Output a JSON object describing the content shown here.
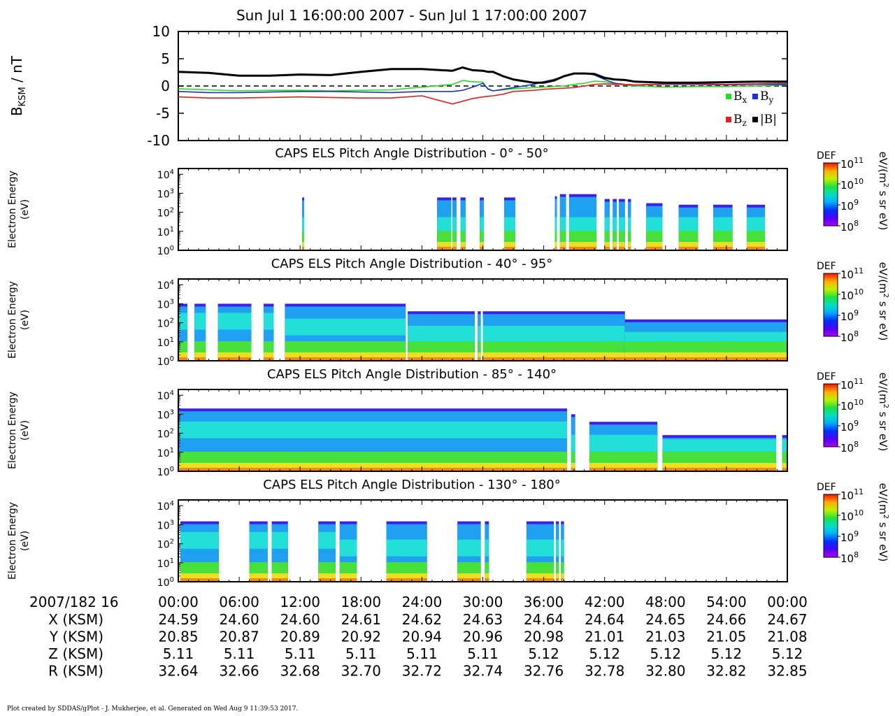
{
  "figure": {
    "title": "Sun Jul 1 16:00:00 2007 - Sun Jul 1 17:00:00 2007",
    "footer": "Plot created by SDDAS/gPlot - J. Mukherjee, et al.  Generated on Wed Aug 9 11:39:53 2017."
  },
  "colors": {
    "bx": "#22dd22",
    "by": "#1f2fd6",
    "bz": "#e21f1f",
    "b_total": "#000000"
  },
  "mag_panel": {
    "ylabel_main": "B",
    "ylabel_sub": "KSM",
    "ylabel_rest": " / nT",
    "legend": [
      {
        "key": "bx",
        "base": "B",
        "sub": "x"
      },
      {
        "key": "by",
        "base": "B",
        "sub": "y"
      },
      {
        "key": "bz",
        "base": "B",
        "sub": "z"
      },
      {
        "key": "b_total",
        "base": "|B|",
        "sub": ""
      }
    ]
  },
  "spec_common": {
    "ylabel_1": "Electron Energy",
    "ylabel_2": "(eV)",
    "cbar_title": "DEF",
    "cbar_unit_a": "eV/(m",
    "cbar_unit_sup": "2",
    "cbar_unit_b": " s sr eV)",
    "cbar_ticks": [
      {
        "base": "10",
        "exp": "11"
      },
      {
        "base": "10",
        "exp": "10"
      },
      {
        "base": "10",
        "exp": "9"
      },
      {
        "base": "10",
        "exp": "8"
      }
    ],
    "y_ticks": [
      {
        "base": "10",
        "exp": "4"
      },
      {
        "base": "10",
        "exp": "3"
      },
      {
        "base": "10",
        "exp": "2"
      },
      {
        "base": "10",
        "exp": "1"
      },
      {
        "base": "10",
        "exp": "0"
      }
    ]
  },
  "ephemeris": {
    "date_label": "2007/182 16",
    "rows": [
      {
        "label": "X (KSM)",
        "values": [
          "24.59",
          "24.60",
          "24.60",
          "24.61",
          "24.62",
          "24.63",
          "24.64",
          "24.64",
          "24.65",
          "24.66",
          "24.67"
        ]
      },
      {
        "label": "Y (KSM)",
        "values": [
          "20.85",
          "20.87",
          "20.89",
          "20.92",
          "20.94",
          "20.96",
          "20.98",
          "21.01",
          "21.03",
          "21.05",
          "21.08"
        ]
      },
      {
        "label": "Z (KSM)",
        "values": [
          "5.11",
          "5.11",
          "5.11",
          "5.11",
          "5.11",
          "5.11",
          "5.12",
          "5.12",
          "5.12",
          "5.12",
          "5.12"
        ]
      },
      {
        "label": "R (KSM)",
        "values": [
          "32.64",
          "32.66",
          "32.68",
          "32.70",
          "32.72",
          "32.74",
          "32.76",
          "32.78",
          "32.80",
          "32.82",
          "32.85"
        ]
      }
    ]
  },
  "chart_data": [
    {
      "type": "line",
      "title": "",
      "ylabel": "BKSM / nT",
      "xlim": [
        "16:00:00",
        "17:00:00"
      ],
      "ylim": [
        -10,
        10
      ],
      "yticks": [
        10,
        5,
        0,
        -5,
        -10
      ],
      "zero_line": "dashed",
      "legend_placement": "bottom-right",
      "x": [
        0,
        3,
        6,
        9,
        12,
        15,
        18,
        21,
        24,
        27,
        28,
        29,
        30,
        30.5,
        31,
        32,
        33,
        35,
        36,
        37,
        38,
        39,
        40,
        41,
        42,
        43,
        44,
        45,
        48,
        51,
        54,
        57,
        60
      ],
      "series": [
        {
          "name": "Bx",
          "key": "bx",
          "values": [
            -0.5,
            -0.7,
            -0.9,
            -0.8,
            -0.8,
            -0.9,
            -0.8,
            -0.7,
            -0.2,
            0.3,
            1.0,
            0.8,
            0.7,
            -0.6,
            -0.9,
            -0.7,
            -0.5,
            -0.3,
            -0.2,
            -0.1,
            0.0,
            0.3,
            0.5,
            0.9,
            0.8,
            0.4,
            0.2,
            0.0,
            -0.2,
            -0.1,
            -0.1,
            0.0,
            0.2
          ]
        },
        {
          "name": "By",
          "key": "by",
          "values": [
            -1.0,
            -1.2,
            -1.2,
            -1.1,
            -1.0,
            -1.0,
            -1.1,
            -1.2,
            -1.0,
            -1.0,
            -0.8,
            -0.2,
            0.5,
            -0.5,
            -0.9,
            -0.6,
            -0.3,
            0.3,
            0.8,
            1.2,
            1.8,
            2.2,
            2.4,
            2.0,
            1.2,
            0.5,
            0.3,
            0.2,
            0.3,
            0.3,
            0.2,
            0.3,
            0.3
          ]
        },
        {
          "name": "Bz",
          "key": "bz",
          "values": [
            -2.0,
            -2.2,
            -2.2,
            -2.1,
            -2.0,
            -2.1,
            -2.2,
            -2.2,
            -1.8,
            -3.3,
            -2.8,
            -2.3,
            -2.0,
            -1.9,
            -1.8,
            -1.5,
            -1.0,
            -0.8,
            -0.6,
            -0.5,
            -0.4,
            -0.3,
            0.0,
            0.3,
            0.4,
            0.3,
            0.3,
            0.2,
            0.4,
            0.4,
            0.3,
            0.4,
            0.5
          ]
        },
        {
          "name": "|B|",
          "key": "b_total",
          "values": [
            2.6,
            2.4,
            1.9,
            1.9,
            2.1,
            2.0,
            2.6,
            3.1,
            3.1,
            2.8,
            3.4,
            2.9,
            2.8,
            2.6,
            2.6,
            1.8,
            1.2,
            0.6,
            0.6,
            1.0,
            1.8,
            2.3,
            2.3,
            2.2,
            1.5,
            1.2,
            1.1,
            0.8,
            0.6,
            0.6,
            0.7,
            0.8,
            0.8
          ]
        }
      ]
    },
    {
      "type": "heatmap",
      "title": "CAPS ELS Pitch Angle Distribution - 0° - 50°",
      "ylabel": "Electron Energy (eV)",
      "y_scale": "log",
      "ylim": [
        1,
        20000
      ],
      "colorbar": {
        "label": "DEF",
        "unit": "eV/(m2 s sr eV)",
        "range": [
          100000000.0,
          100000000000.0
        ],
        "scale": "log"
      },
      "data_blocks": [
        {
          "x_start": 12.2,
          "x_end": 12.4,
          "upper_energy": 600,
          "band_center": 20
        },
        {
          "x_start": 25.5,
          "x_end": 26.9,
          "upper_energy": 600,
          "band_center": 20
        },
        {
          "x_start": 27.0,
          "x_end": 27.4,
          "upper_energy": 600,
          "band_center": 20
        },
        {
          "x_start": 27.8,
          "x_end": 28.3,
          "upper_energy": 600,
          "band_center": 20
        },
        {
          "x_start": 29.7,
          "x_end": 30.1,
          "upper_energy": 600,
          "band_center": 20
        },
        {
          "x_start": 32.1,
          "x_end": 33.2,
          "upper_energy": 600,
          "band_center": 20
        },
        {
          "x_start": 37.1,
          "x_end": 37.3,
          "upper_energy": 700,
          "band_center": 20
        },
        {
          "x_start": 37.6,
          "x_end": 38.2,
          "upper_energy": 900,
          "band_center": 20
        },
        {
          "x_start": 38.5,
          "x_end": 41.2,
          "upper_energy": 900,
          "band_center": 20
        },
        {
          "x_start": 42.0,
          "x_end": 42.5,
          "upper_energy": 500,
          "band_center": 20
        },
        {
          "x_start": 42.8,
          "x_end": 43.2,
          "upper_energy": 500,
          "band_center": 20
        },
        {
          "x_start": 43.4,
          "x_end": 44.0,
          "upper_energy": 500,
          "band_center": 20
        },
        {
          "x_start": 44.3,
          "x_end": 44.6,
          "upper_energy": 500,
          "band_center": 20
        },
        {
          "x_start": 46.1,
          "x_end": 47.7,
          "upper_energy": 300,
          "band_center": 20
        },
        {
          "x_start": 49.3,
          "x_end": 51.2,
          "upper_energy": 250,
          "band_center": 20
        },
        {
          "x_start": 52.7,
          "x_end": 54.6,
          "upper_energy": 250,
          "band_center": 20
        },
        {
          "x_start": 56.0,
          "x_end": 57.8,
          "upper_energy": 250,
          "band_center": 20
        }
      ]
    },
    {
      "type": "heatmap",
      "title": "CAPS ELS Pitch Angle Distribution - 40° - 95°",
      "ylabel": "Electron Energy (eV)",
      "y_scale": "log",
      "ylim": [
        1,
        20000
      ],
      "colorbar": {
        "label": "DEF",
        "unit": "eV/(m2 s sr eV)",
        "range": [
          100000000.0,
          100000000000.0
        ],
        "scale": "log"
      },
      "data_blocks": [
        {
          "x_start": 0.0,
          "x_end": 0.9,
          "upper_energy": 1000,
          "band_center": 120
        },
        {
          "x_start": 1.6,
          "x_end": 2.7,
          "upper_energy": 1000,
          "band_center": 120
        },
        {
          "x_start": 3.9,
          "x_end": 7.2,
          "upper_energy": 1000,
          "band_center": 120
        },
        {
          "x_start": 8.4,
          "x_end": 9.4,
          "upper_energy": 1000,
          "band_center": 120
        },
        {
          "x_start": 10.5,
          "x_end": 22.4,
          "upper_energy": 1000,
          "band_center": 60
        },
        {
          "x_start": 22.6,
          "x_end": 29.2,
          "upper_energy": 400,
          "band_center": 25
        },
        {
          "x_start": 29.5,
          "x_end": 29.8,
          "upper_energy": 400,
          "band_center": 25
        },
        {
          "x_start": 30.0,
          "x_end": 44.0,
          "upper_energy": 400,
          "band_center": 25
        },
        {
          "x_start": 44.0,
          "x_end": 60.0,
          "upper_energy": 150,
          "band_center": 12
        }
      ]
    },
    {
      "type": "heatmap",
      "title": "CAPS ELS Pitch Angle Distribution - 85° - 140°",
      "ylabel": "Electron Energy (eV)",
      "y_scale": "log",
      "ylim": [
        1,
        20000
      ],
      "colorbar": {
        "label": "DEF",
        "unit": "eV/(m2 s sr eV)",
        "range": [
          100000000.0,
          100000000000.0
        ],
        "scale": "log"
      },
      "data_blocks": [
        {
          "x_start": 0.0,
          "x_end": 38.3,
          "upper_energy": 2000,
          "band_center": 150
        },
        {
          "x_start": 38.7,
          "x_end": 39.1,
          "upper_energy": 1000,
          "band_center": 30
        },
        {
          "x_start": 40.5,
          "x_end": 47.2,
          "upper_energy": 400,
          "band_center": 30
        },
        {
          "x_start": 47.7,
          "x_end": 58.9,
          "upper_energy": 80,
          "band_center": 20
        },
        {
          "x_start": 59.5,
          "x_end": 60.0,
          "upper_energy": 80,
          "band_center": 20
        }
      ]
    },
    {
      "type": "heatmap",
      "title": "CAPS ELS Pitch Angle Distribution - 130° - 180°",
      "ylabel": "Electron Energy (eV)",
      "y_scale": "log",
      "ylim": [
        1,
        20000
      ],
      "colorbar": {
        "label": "DEF",
        "unit": "eV/(m2 s sr eV)",
        "range": [
          100000000.0,
          100000000000.0
        ],
        "scale": "log"
      },
      "data_blocks": [
        {
          "x_start": 0.2,
          "x_end": 4.0,
          "upper_energy": 1500,
          "band_center": 150
        },
        {
          "x_start": 7.0,
          "x_end": 8.8,
          "upper_energy": 1500,
          "band_center": 150
        },
        {
          "x_start": 9.2,
          "x_end": 10.8,
          "upper_energy": 1500,
          "band_center": 150
        },
        {
          "x_start": 13.8,
          "x_end": 15.5,
          "upper_energy": 1500,
          "band_center": 150
        },
        {
          "x_start": 15.9,
          "x_end": 17.6,
          "upper_energy": 1500,
          "band_center": 60
        },
        {
          "x_start": 20.5,
          "x_end": 24.5,
          "upper_energy": 1500,
          "band_center": 60
        },
        {
          "x_start": 27.5,
          "x_end": 29.8,
          "upper_energy": 1500,
          "band_center": 60
        },
        {
          "x_start": 30.2,
          "x_end": 30.6,
          "upper_energy": 1500,
          "band_center": 60
        },
        {
          "x_start": 34.3,
          "x_end": 37.0,
          "upper_energy": 1500,
          "band_center": 60
        },
        {
          "x_start": 37.2,
          "x_end": 37.5,
          "upper_energy": 1500,
          "band_center": 60
        },
        {
          "x_start": 37.7,
          "x_end": 38.0,
          "upper_energy": 1500,
          "band_center": 60
        }
      ]
    }
  ],
  "x_axis": {
    "ticks": [
      "00:00",
      "06:00",
      "12:00",
      "18:00",
      "24:00",
      "30:00",
      "36:00",
      "42:00",
      "48:00",
      "54:00",
      "00:00"
    ]
  }
}
